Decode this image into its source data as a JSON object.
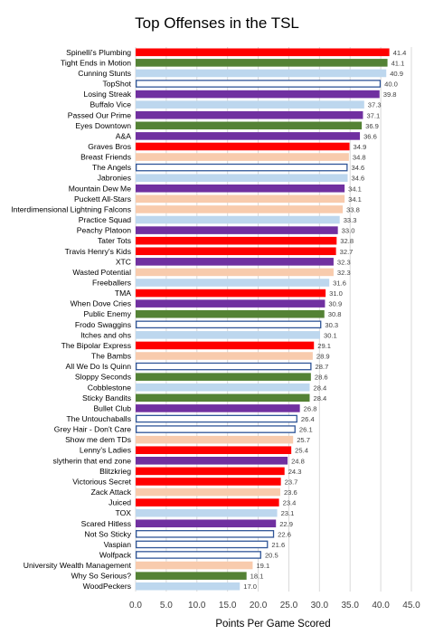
{
  "chart_data": {
    "type": "bar",
    "orientation": "horizontal",
    "title": "Top Offenses in the TSL",
    "xlabel": "Points Per Game Scored",
    "ylabel": "",
    "xlim": [
      0,
      45
    ],
    "xticks": [
      "0.0",
      "5.0",
      "10.0",
      "15.0",
      "20.0",
      "25.0",
      "30.0",
      "35.0",
      "40.0",
      "45.0"
    ],
    "grid": true,
    "legend": "none",
    "colors": {
      "red": "#ff0000",
      "green": "#548235",
      "lightblue": "#bdd7ee",
      "outline": "#2f5597",
      "purple": "#7030a0",
      "peach": "#f8cbad"
    },
    "categories": [
      "Spinelli's Plumbing",
      "Tight Ends in Motion",
      "Cunning Stunts",
      "TopShot",
      "Losing Streak",
      "Buffalo Vice",
      "Passed Our Prime",
      "Eyes Downtown",
      "A&A",
      "Graves Bros",
      "Breast Friends",
      "The Angels",
      "Jabronies",
      "Mountain Dew Me",
      "Puckett All-Stars",
      "Interdimensional Lightning Falcons",
      "Practice Squad",
      "Peachy Platoon",
      "Tater Tots",
      "Travis Henry's Kids",
      "XTC",
      "Wasted Potential",
      "Freeballers",
      "TMA",
      "When Dove Cries",
      "Public Enemy",
      "Frodo Swaggins",
      "Itches and ohs",
      "The Bipolar Express",
      "The Bambs",
      "All We Do Is Quinn",
      "Sloppy Seconds",
      "Cobblestone",
      "Sticky Bandits",
      "Bullet Club",
      "The Untouchaballs",
      "Grey Hair - Don't Care",
      "Show me dem TDs",
      "Lenny's Ladies",
      "slytherin that end zone",
      "Blitzkrieg",
      "Victorious Secret",
      "Zack Attack",
      "Juiced",
      "TOX",
      "Scared Hitless",
      "Not So Sticky",
      "Vaspian",
      "Wolfpack",
      "University Wealth Management",
      "Why So Serious?",
      "WoodPeckers"
    ],
    "values": [
      41.4,
      41.1,
      40.9,
      40.0,
      39.8,
      37.3,
      37.1,
      36.9,
      36.6,
      34.9,
      34.8,
      34.6,
      34.6,
      34.1,
      34.1,
      33.8,
      33.3,
      33.0,
      32.8,
      32.7,
      32.3,
      32.3,
      31.6,
      31.0,
      30.9,
      30.8,
      30.3,
      30.1,
      29.1,
      28.9,
      28.7,
      28.6,
      28.4,
      28.4,
      26.8,
      26.4,
      26.1,
      25.7,
      25.4,
      24.8,
      24.3,
      23.7,
      23.6,
      23.4,
      23.1,
      22.9,
      22.6,
      21.6,
      20.5,
      19.1,
      18.1,
      17.0
    ],
    "labels": [
      "41.4",
      "41.1",
      "40.9",
      "40.0",
      "39.8",
      "37.3",
      "37.1",
      "36.9",
      "36.6",
      "34.9",
      "34.8",
      "34.6",
      "34.6",
      "34.1",
      "34.1",
      "33.8",
      "33.3",
      "33.0",
      "32.8",
      "32.7",
      "32.3",
      "32.3",
      "31.6",
      "31.0",
      "30.9",
      "30.8",
      "30.3",
      "30.1",
      "29.1",
      "28.9",
      "28.7",
      "28.6",
      "28.4",
      "28.4",
      "26.8",
      "26.4",
      "26.1",
      "25.7",
      "25.4",
      "24.8",
      "24.3",
      "23.7",
      "23.6",
      "23.4",
      "23.1",
      "22.9",
      "22.6",
      "21.6",
      "20.5",
      "19.1",
      "18.1",
      "17.0"
    ],
    "bar_styles": [
      "red",
      "green",
      "lightblue",
      "outline",
      "purple",
      "lightblue",
      "purple",
      "green",
      "purple",
      "red",
      "peach",
      "outline",
      "lightblue",
      "purple",
      "peach",
      "peach",
      "lightblue",
      "purple",
      "red",
      "red",
      "purple",
      "peach",
      "lightblue",
      "red",
      "purple",
      "green",
      "outline",
      "lightblue",
      "red",
      "peach",
      "outline",
      "green",
      "lightblue",
      "green",
      "purple",
      "outline",
      "outline",
      "peach",
      "red",
      "purple",
      "red",
      "red",
      "peach",
      "red",
      "lightblue",
      "purple",
      "outline",
      "outline",
      "outline",
      "peach",
      "green",
      "lightblue"
    ]
  }
}
